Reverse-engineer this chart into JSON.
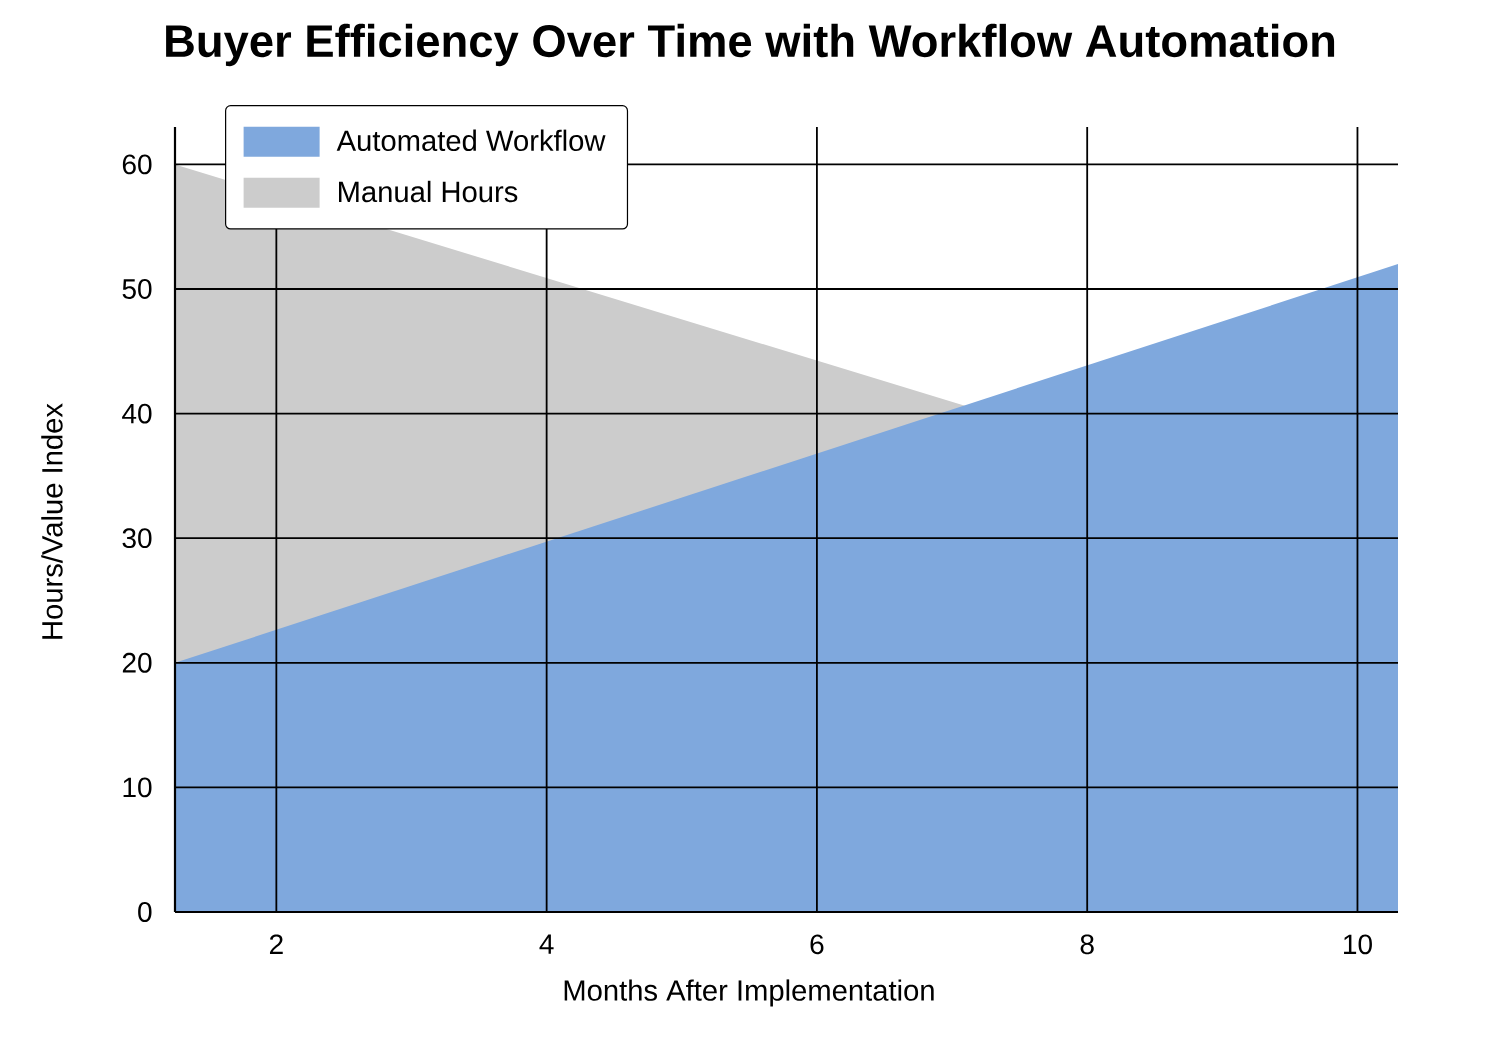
{
  "chart_data": {
    "type": "area",
    "title": "Buyer Efficiency Over Time with Workflow Automation",
    "xlabel": "Months After Implementation",
    "ylabel": "Hours/Value Index",
    "x": [
      1.25,
      10.3
    ],
    "series": [
      {
        "name": "Automated Workflow",
        "color": "#7fa8dd",
        "values": [
          20,
          52
        ]
      },
      {
        "name": "Manual Hours",
        "color": "#cccccc",
        "values": [
          60,
          30
        ]
      }
    ],
    "xlim": [
      1.25,
      10.3
    ],
    "ylim": [
      0,
      63
    ],
    "xticks": [
      2,
      4,
      6,
      8,
      10
    ],
    "yticks": [
      0,
      10,
      20,
      30,
      40,
      50,
      60
    ],
    "grid": true,
    "legend": "top left"
  }
}
